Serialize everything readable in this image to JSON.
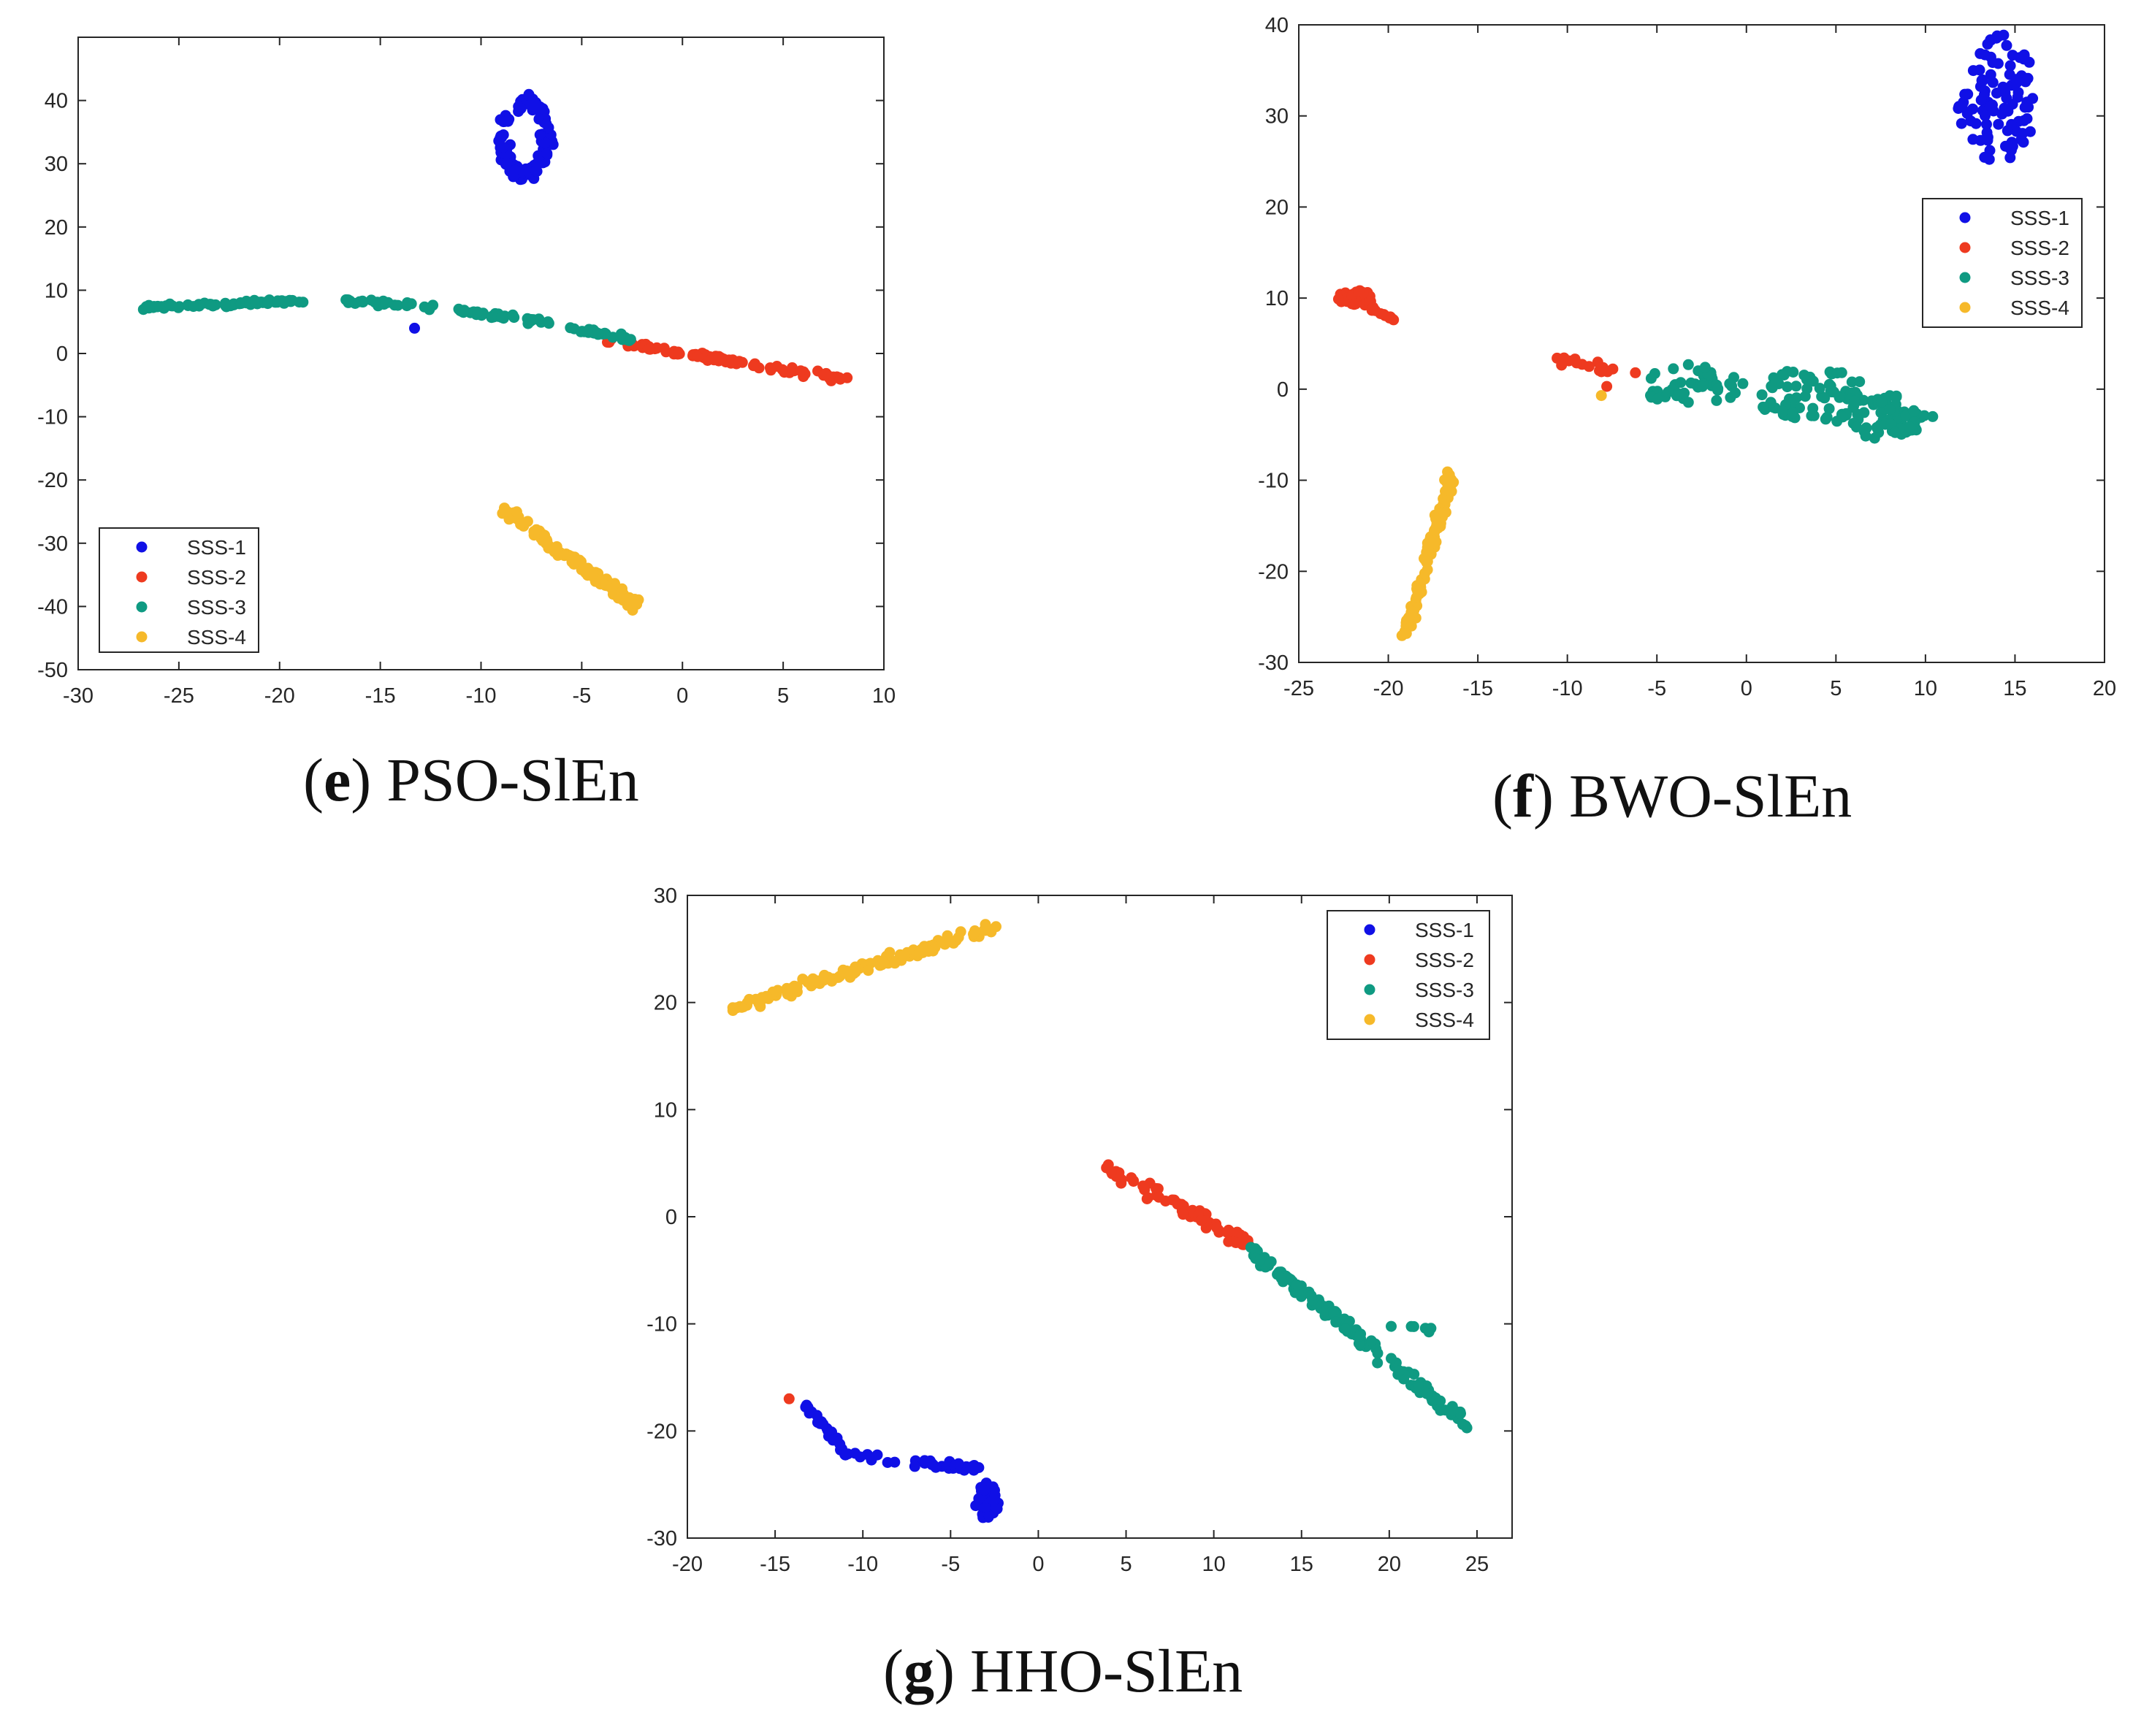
{
  "figure": {
    "legend_labels": [
      "SSS-1",
      "SSS-2",
      "SSS-3",
      "SSS-4"
    ],
    "colors": {
      "SSS-1": "#1010e6",
      "SSS-2": "#ee3a1f",
      "SSS-3": "#0f9a82",
      "SSS-4": "#f6b92a"
    }
  },
  "captions": {
    "e": {
      "open": "(",
      "letter": "e",
      "close": ")",
      "text": " PSO-SlEn"
    },
    "f": {
      "open": "(",
      "letter": "f",
      "close": ")",
      "text": " BWO-SlEn"
    },
    "g": {
      "open": "(",
      "letter": "g",
      "close": ")",
      "text": " HHO-SlEn"
    }
  },
  "chart_data": [
    {
      "type": "scatter",
      "title": "(e) PSO-SlEn",
      "xlim": [
        -30,
        10
      ],
      "ylim": [
        -50,
        50
      ],
      "xticks": [
        -30,
        -25,
        -20,
        -15,
        -10,
        -5,
        0,
        5,
        10
      ],
      "yticks": [
        -50,
        -40,
        -30,
        -20,
        -10,
        0,
        10,
        20,
        30,
        40
      ],
      "legend_position": "bottom-left",
      "series": [
        {
          "name": "SSS-1",
          "clusters": [
            {
              "shape": "loop",
              "cx": -7.8,
              "cy": 34,
              "rx": 1.2,
              "ry": 6.5,
              "n": 110
            },
            {
              "shape": "single",
              "x": -13.3,
              "y": 4
            }
          ]
        },
        {
          "name": "SSS-2",
          "clusters": [
            {
              "shape": "line",
              "from": [
                -3.8,
                2
              ],
              "to": [
                8,
                -4
              ],
              "spread": 0.6,
              "n": 90
            }
          ]
        },
        {
          "name": "SSS-3",
          "clusters": [
            {
              "shape": "line",
              "from": [
                -26.8,
                7.3
              ],
              "to": [
                -22,
                7.8
              ],
              "spread": 0.4,
              "n": 40
            },
            {
              "shape": "line",
              "from": [
                -22,
                8
              ],
              "to": [
                -18.5,
                8.3
              ],
              "spread": 0.4,
              "n": 30
            },
            {
              "shape": "line",
              "from": [
                -17,
                8.4
              ],
              "to": [
                -12.5,
                7.5
              ],
              "spread": 0.6,
              "n": 30
            },
            {
              "shape": "line",
              "from": [
                -11.5,
                6.8
              ],
              "to": [
                -6.5,
                4.8
              ],
              "spread": 0.6,
              "n": 35
            },
            {
              "shape": "line",
              "from": [
                -6,
                4.2
              ],
              "to": [
                -2.5,
                2.2
              ],
              "spread": 0.6,
              "n": 25
            }
          ]
        },
        {
          "name": "SSS-4",
          "clusters": [
            {
              "shape": "line",
              "from": [
                -9,
                -24.5
              ],
              "to": [
                -2.2,
                -40
              ],
              "spread": 1.0,
              "n": 110
            }
          ]
        }
      ]
    },
    {
      "type": "scatter",
      "title": "(f) BWO-SlEn",
      "xlim": [
        -25,
        20
      ],
      "ylim": [
        -30,
        40
      ],
      "xticks": [
        -25,
        -20,
        -15,
        -10,
        -5,
        0,
        5,
        10,
        15,
        20
      ],
      "yticks": [
        -30,
        -20,
        -10,
        0,
        10,
        20,
        30,
        40
      ],
      "legend_position": "top-right",
      "series": [
        {
          "name": "SSS-1",
          "clusters": [
            {
              "shape": "blob",
              "cx": 14,
              "cy": 32,
              "rx": 2.2,
              "ry": 7,
              "n": 95
            }
          ]
        },
        {
          "name": "SSS-2",
          "clusters": [
            {
              "shape": "blob",
              "cx": -21.8,
              "cy": 10,
              "rx": 1.0,
              "ry": 0.9,
              "n": 40
            },
            {
              "shape": "line",
              "from": [
                -21,
                9
              ],
              "to": [
                -19.6,
                7.6
              ],
              "spread": 0.4,
              "n": 10
            },
            {
              "shape": "line",
              "from": [
                -10.5,
                3.4
              ],
              "to": [
                -7.5,
                2.2
              ],
              "spread": 0.8,
              "n": 14
            },
            {
              "shape": "single",
              "x": -7.8,
              "y": 0.3
            },
            {
              "shape": "single",
              "x": -6.2,
              "y": 1.8
            }
          ]
        },
        {
          "name": "SSS-3",
          "clusters": [
            {
              "shape": "blob",
              "cx": -3,
              "cy": 0.5,
              "rx": 3,
              "ry": 2.2,
              "n": 45
            },
            {
              "shape": "blob",
              "cx": 3.5,
              "cy": -0.5,
              "rx": 3.2,
              "ry": 3,
              "n": 70
            },
            {
              "shape": "blob",
              "cx": 7.5,
              "cy": -3,
              "rx": 3,
              "ry": 2.4,
              "n": 70
            }
          ]
        },
        {
          "name": "SSS-4",
          "clusters": [
            {
              "shape": "line",
              "from": [
                -16.5,
                -9.3
              ],
              "to": [
                -19,
                -27
              ],
              "spread": 0.8,
              "n": 110
            },
            {
              "shape": "single",
              "x": -8.1,
              "y": -0.7
            }
          ]
        }
      ]
    },
    {
      "type": "scatter",
      "title": "(g) HHO-SlEn",
      "xlim": [
        -20,
        27
      ],
      "ylim": [
        -30,
        30
      ],
      "xticks": [
        -20,
        -15,
        -10,
        -5,
        0,
        5,
        10,
        15,
        20,
        25
      ],
      "yticks": [
        -30,
        -20,
        -10,
        0,
        10,
        20,
        30
      ],
      "legend_position": "top-right",
      "series": [
        {
          "name": "SSS-1",
          "clusters": [
            {
              "shape": "line",
              "from": [
                -13.5,
                -17
              ],
              "to": [
                -11,
                -22
              ],
              "spread": 0.5,
              "n": 22
            },
            {
              "shape": "line",
              "from": [
                -11,
                -22
              ],
              "to": [
                -8,
                -23
              ],
              "spread": 0.4,
              "n": 10
            },
            {
              "shape": "line",
              "from": [
                -7,
                -22.8
              ],
              "to": [
                -3.5,
                -23.5
              ],
              "spread": 0.6,
              "n": 22
            },
            {
              "shape": "blob",
              "cx": -2.9,
              "cy": -26.5,
              "rx": 0.7,
              "ry": 1.8,
              "n": 45
            }
          ]
        },
        {
          "name": "SSS-2",
          "clusters": [
            {
              "shape": "line",
              "from": [
                4,
                4.5
              ],
              "to": [
                12,
                -2.5
              ],
              "spread": 0.9,
              "n": 75
            },
            {
              "shape": "single",
              "x": -14.2,
              "y": -17
            }
          ]
        },
        {
          "name": "SSS-3",
          "clusters": [
            {
              "shape": "line",
              "from": [
                12,
                -2.8
              ],
              "to": [
                24.5,
                -19.5
              ],
              "spread": 0.8,
              "n": 150
            },
            {
              "shape": "line",
              "from": [
                20,
                -10.2
              ],
              "to": [
                22.5,
                -10.5
              ],
              "spread": 0.3,
              "n": 6
            }
          ]
        },
        {
          "name": "SSS-4",
          "clusters": [
            {
              "shape": "line",
              "from": [
                -17.5,
                19.5
              ],
              "to": [
                -2.5,
                27
              ],
              "spread": 0.7,
              "n": 130
            }
          ]
        }
      ]
    }
  ]
}
